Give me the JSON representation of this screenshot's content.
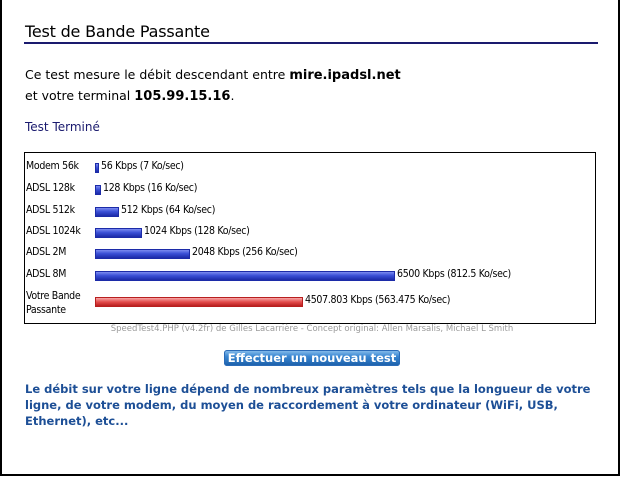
{
  "page": {
    "title": "Test de Bande Passante",
    "intro_line1_prefix": "Ce test mesure le débit descendant entre ",
    "server": "mire.ipadsl.net",
    "intro_line2_prefix": "et votre terminal ",
    "client_ip": "105.99.15.16",
    "intro_suffix": ".",
    "status": "Test Terminé"
  },
  "chart_data": {
    "type": "bar",
    "orientation": "horizontal",
    "categories": [
      "Modem 56k",
      "ADSL 128k",
      "ADSL 512k",
      "ADSL 1024k",
      "ADSL 2M",
      "ADSL 8M",
      "Votre Bande Passante"
    ],
    "values_kbps": [
      56,
      128,
      512,
      1024,
      2048,
      6500,
      4507.803
    ],
    "value_labels": [
      "56 Kbps (7 Ko/sec)",
      "128 Kbps (16 Ko/sec)",
      "512 Kbps (64 Ko/sec)",
      "1024 Kbps (128 Ko/sec)",
      "2048 Kbps (256 Ko/sec)",
      "6500 Kbps (812.5 Ko/sec)",
      "4507.803 Kbps (563.475 Ko/sec)"
    ],
    "bar_colors": [
      "#3a4fd6",
      "#3a4fd6",
      "#3a4fd6",
      "#3a4fd6",
      "#3a4fd6",
      "#3a4fd6",
      "#e34a4a"
    ],
    "label_line1": "Votre Bande",
    "label_line2": "Passante"
  },
  "credits": "SpeedTest4.PHP (v4.2fr) de Gilles Lacarrière - Concept original: Allen Marsalis, Michael L Smith",
  "button": {
    "label": "Effectuer un nouveau test"
  },
  "note": "Le débit sur votre ligne dépend de nombreux paramètres tels que la longueur de votre ligne, de votre modem, du moyen de raccordement à votre ordinateur (WiFi, USB, Ethernet), etc...",
  "colors": {
    "accent_blue": "#1d4f96",
    "bar_blue": "#3a4fd6",
    "bar_red": "#e34a4a",
    "rule": "#1a1a6e"
  }
}
